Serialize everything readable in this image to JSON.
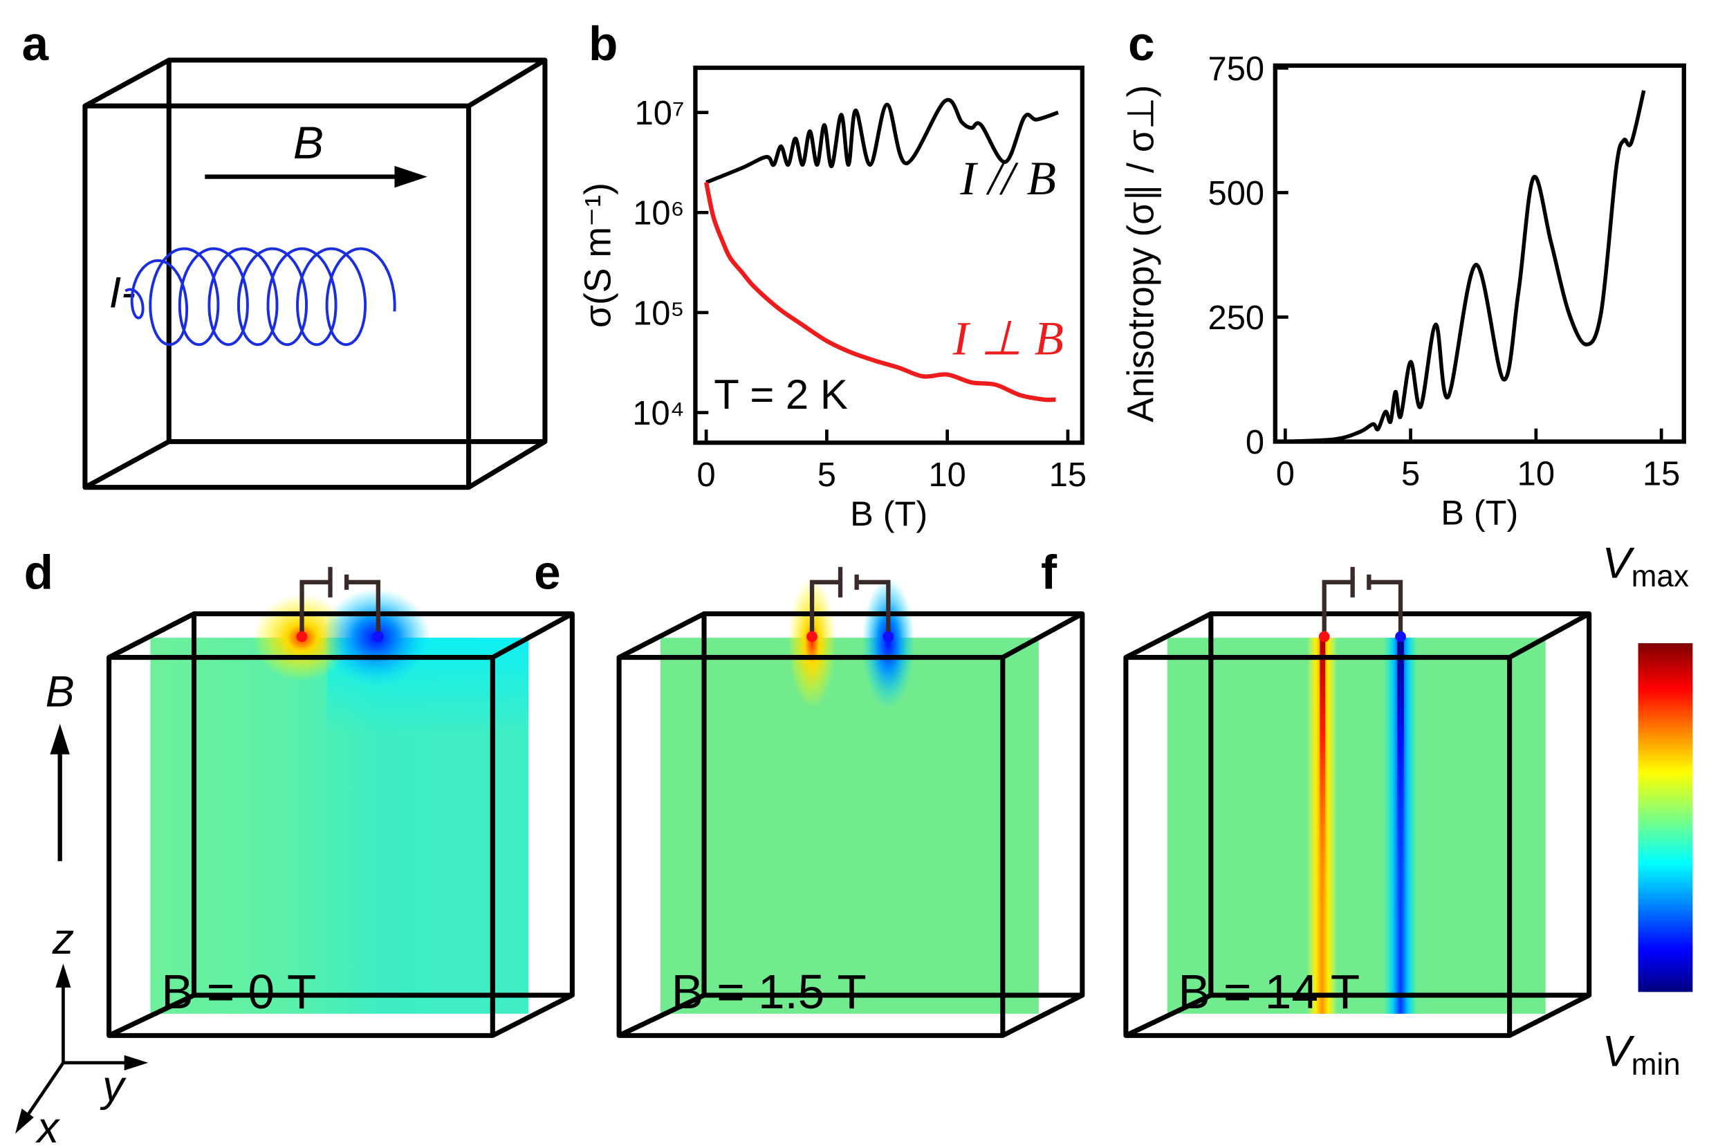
{
  "panel_a": {
    "label": "a",
    "field": "B",
    "current": "I-"
  },
  "chart_data": [
    {
      "type": "line",
      "panel": "b",
      "x_label": "B (T)",
      "y_label": "σ(S m⁻¹)",
      "annotation": "T = 2 K",
      "y_scale": "log",
      "xlim": [
        -0.45,
        15.6
      ],
      "xticks": [
        0,
        5,
        10,
        15
      ],
      "ylim": [
        5000,
        28000000
      ],
      "yticks": [
        {
          "value": 10000,
          "label": "10⁴"
        },
        {
          "value": 100000,
          "label": "10⁵"
        },
        {
          "value": 1000000,
          "label": "10⁶"
        },
        {
          "value": 10000000,
          "label": "10⁷"
        }
      ],
      "series": [
        {
          "name": "I // B",
          "color": "#000000",
          "x": [
            0,
            1.5,
            2.5,
            2.8,
            3.1,
            3.4,
            3.7,
            4.0,
            4.3,
            4.6,
            4.9,
            5.2,
            5.6,
            5.9,
            6.2,
            6.8,
            7.5,
            8.3,
            9.9,
            10.6,
            11.0,
            11.4,
            12.4,
            13.2,
            13.7,
            14.6
          ],
          "values": [
            2000000,
            2800000,
            3600000,
            3000000,
            4600000,
            3000000,
            5500000,
            3000000,
            6500000,
            3000000,
            7500000,
            2900000,
            9500000,
            3000000,
            10500000,
            3000000,
            12000000,
            3100000,
            13000000,
            8000000,
            7000000,
            7500000,
            3200000,
            9000000,
            8500000,
            10000000
          ]
        },
        {
          "name": "I ⊥ B",
          "color": "#ee1c1c",
          "x": [
            0,
            0.3,
            0.7,
            1,
            1.5,
            2,
            3,
            4,
            5,
            6,
            7,
            8,
            9,
            10,
            11,
            12,
            13,
            14,
            14.5
          ],
          "values": [
            2000000,
            900000,
            500000,
            350000,
            250000,
            180000,
            110000,
            75000,
            52000,
            40000,
            33000,
            28000,
            23000,
            24000,
            20000,
            19000,
            15000,
            13500,
            13500
          ]
        }
      ]
    },
    {
      "type": "line",
      "panel": "c",
      "x_label": "B (T)",
      "y_label": "Anisotropy (σ∥ / σ⊥)",
      "xlim": [
        -0.4,
        15.9
      ],
      "xticks": [
        0,
        5,
        10,
        15
      ],
      "ylim": [
        0,
        755
      ],
      "yticks": [
        0,
        250,
        500,
        750
      ],
      "series": [
        {
          "color": "#000000",
          "x": [
            0,
            2,
            3,
            3.5,
            3.7,
            4,
            4.2,
            4.4,
            4.6,
            5,
            5.4,
            6,
            6.5,
            7.6,
            8.7,
            9.3,
            9.9,
            10.6,
            11.3,
            12,
            12.6,
            13.2,
            13.5,
            13.8,
            14.3
          ],
          "values": [
            0,
            5,
            20,
            35,
            25,
            60,
            40,
            100,
            50,
            160,
            70,
            235,
            90,
            355,
            125,
            300,
            530,
            400,
            260,
            195,
            260,
            550,
            605,
            600,
            705
          ]
        }
      ]
    }
  ],
  "field_arrow": "B",
  "simulations": [
    {
      "label": "d",
      "field_value": "B = 0 T"
    },
    {
      "label": "e",
      "field_value": "B = 1.5 T"
    },
    {
      "label": "f",
      "field_value": "B = 14 T"
    }
  ],
  "colorbar": {
    "symbol": "V",
    "max": "max",
    "min": "min"
  },
  "axes_triad": {
    "z": "z",
    "y": "y",
    "x": "x"
  }
}
